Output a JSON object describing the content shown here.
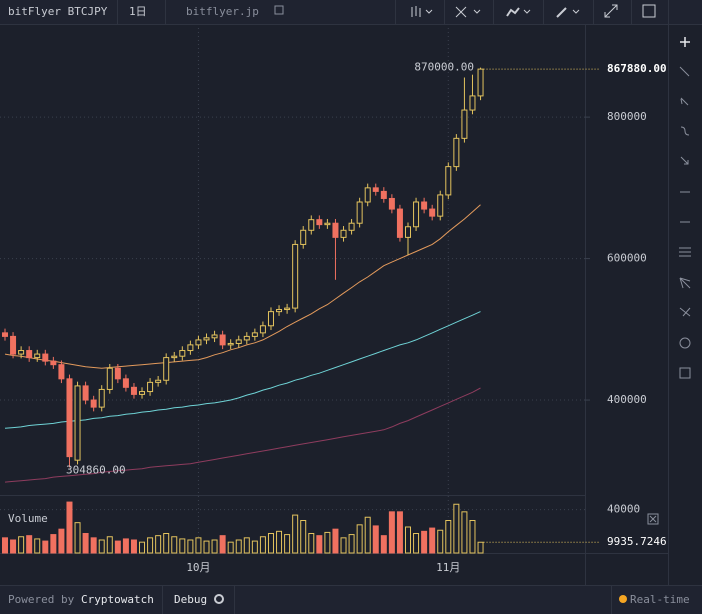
{
  "header": {
    "pair": "bitFlyer BTCJPY",
    "interval": "1日",
    "exchange": "bitflyer.jp"
  },
  "chart_data": {
    "type": "candlestick",
    "categories": [
      null,
      null,
      null,
      null,
      null,
      null,
      null,
      null,
      null,
      null,
      null,
      null,
      null,
      null,
      null,
      null,
      null,
      null,
      null,
      null,
      null,
      null,
      null,
      null,
      "10月",
      null,
      null,
      null,
      null,
      null,
      null,
      null,
      null,
      null,
      null,
      null,
      null,
      null,
      null,
      null,
      null,
      null,
      null,
      null,
      null,
      null,
      null,
      null,
      null,
      null,
      null,
      null,
      null,
      null,
      null,
      "11月",
      null,
      null,
      null,
      null
    ],
    "open": [
      495000,
      490000,
      465000,
      470000,
      460000,
      465000,
      455000,
      450000,
      430000,
      315000,
      420000,
      400000,
      390000,
      415000,
      445000,
      430000,
      418000,
      408000,
      412000,
      425000,
      428000,
      460000,
      462000,
      470000,
      478000,
      485000,
      488000,
      492000,
      478000,
      480000,
      485000,
      490000,
      495000,
      505000,
      525000,
      528000,
      530000,
      620000,
      640000,
      655000,
      648000,
      650000,
      630000,
      640000,
      650000,
      680000,
      700000,
      695000,
      685000,
      670000,
      630000,
      645000,
      680000,
      670000,
      660000,
      690000,
      730000,
      770000,
      810000,
      830000
    ],
    "high": [
      501000,
      496000,
      476000,
      476000,
      471000,
      471000,
      461000,
      456000,
      436000,
      426000,
      426000,
      406000,
      421000,
      451000,
      451000,
      436000,
      424000,
      418000,
      431000,
      434000,
      466000,
      468000,
      476000,
      484000,
      491000,
      494000,
      498000,
      498000,
      486000,
      491000,
      496000,
      501000,
      511000,
      531000,
      534000,
      536000,
      626000,
      646000,
      661000,
      661000,
      656000,
      656000,
      646000,
      656000,
      686000,
      706000,
      706000,
      701000,
      691000,
      676000,
      651000,
      686000,
      686000,
      676000,
      696000,
      736000,
      776000,
      856000,
      860000,
      870000
    ],
    "low": [
      484000,
      459000,
      459000,
      454000,
      454000,
      449000,
      444000,
      424000,
      304860,
      309000,
      394000,
      384000,
      384000,
      409000,
      424000,
      412000,
      402000,
      402000,
      406000,
      419000,
      422000,
      454000,
      456000,
      464000,
      472000,
      479000,
      482000,
      472000,
      472000,
      474000,
      479000,
      484000,
      489000,
      499000,
      519000,
      522000,
      524000,
      614000,
      634000,
      642000,
      642000,
      570000,
      624000,
      634000,
      644000,
      674000,
      689000,
      679000,
      664000,
      624000,
      605000,
      639000,
      664000,
      654000,
      654000,
      684000,
      724000,
      764000,
      804000,
      824000
    ],
    "close": [
      490000,
      465000,
      470000,
      460000,
      465000,
      455000,
      450000,
      430000,
      320000,
      420000,
      400000,
      390000,
      415000,
      445000,
      430000,
      418000,
      408000,
      412000,
      425000,
      428000,
      460000,
      462000,
      470000,
      478000,
      485000,
      488000,
      492000,
      478000,
      480000,
      485000,
      490000,
      495000,
      505000,
      525000,
      528000,
      530000,
      620000,
      640000,
      655000,
      648000,
      650000,
      630000,
      640000,
      650000,
      680000,
      700000,
      695000,
      685000,
      670000,
      630000,
      645000,
      680000,
      670000,
      660000,
      690000,
      730000,
      770000,
      810000,
      830000,
      867880
    ],
    "colors": {
      "up": "#e3c35e",
      "down": "#f07160"
    },
    "ylim": [
      270000,
      926000
    ],
    "yticks": [
      400000,
      600000,
      800000
    ],
    "grid": true,
    "high_label": {
      "value": 870000,
      "label": "870000.00"
    },
    "low_label": {
      "value": 304860,
      "label": "304860.00"
    },
    "last_price": {
      "value": 867880,
      "label": "867880.00"
    },
    "moving_averages": [
      {
        "color": "#e39a5c",
        "values": [
          465000,
          463000,
          462000,
          460000,
          458000,
          456000,
          455000,
          453000,
          451000,
          449000,
          447000,
          446000,
          445000,
          446000,
          447000,
          448000,
          449000,
          450000,
          451000,
          452000,
          453000,
          454000,
          455000,
          456000,
          457000,
          460000,
          464000,
          467000,
          471000,
          474000,
          478000,
          481000,
          485000,
          491000,
          497000,
          504000,
          510000,
          516000,
          522000,
          529000,
          535000,
          543000,
          551000,
          559000,
          567000,
          574000,
          582000,
          590000,
          595000,
          600000,
          605000,
          610000,
          615000,
          620000,
          628000,
          638000,
          647000,
          656000,
          666000,
          676000
        ]
      },
      {
        "color": "#6fd3d6",
        "values": [
          360000,
          361000,
          362000,
          364000,
          365000,
          366000,
          367000,
          369000,
          370000,
          371000,
          372000,
          374000,
          375000,
          377000,
          378000,
          380000,
          381000,
          383000,
          384000,
          386000,
          387000,
          389000,
          390000,
          392000,
          393000,
          395000,
          396000,
          398000,
          400000,
          403000,
          407000,
          410000,
          414000,
          417000,
          421000,
          424000,
          428000,
          431000,
          435000,
          438000,
          442000,
          446000,
          450000,
          454000,
          458000,
          462000,
          466000,
          470000,
          474000,
          478000,
          481000,
          485000,
          490000,
          495000,
          500000,
          505000,
          510000,
          515000,
          520000,
          525000
        ]
      },
      {
        "color": "#8e3c5e",
        "values": [
          284000,
          285000,
          286000,
          287000,
          288000,
          289000,
          291000,
          292000,
          293000,
          294000,
          295000,
          296000,
          298000,
          299000,
          300000,
          301000,
          302000,
          303000,
          305000,
          306000,
          307000,
          308000,
          309000,
          310000,
          312000,
          314000,
          316000,
          318000,
          320000,
          322000,
          324000,
          326000,
          328000,
          330000,
          332000,
          334000,
          336000,
          338000,
          340000,
          342000,
          344000,
          346000,
          348000,
          350000,
          352000,
          354000,
          356000,
          358000,
          362000,
          367000,
          371000,
          376000,
          381000,
          386000,
          391000,
          396000,
          401000,
          406000,
          411000,
          417000
        ]
      }
    ],
    "volume": {
      "title": "Volume",
      "values": [
        14000,
        12000,
        15000,
        16000,
        13000,
        11000,
        17000,
        22000,
        47000,
        28000,
        18000,
        14000,
        12000,
        15000,
        11000,
        13000,
        12000,
        10000,
        14000,
        16000,
        18000,
        15000,
        13000,
        12000,
        14000,
        11000,
        12000,
        16000,
        10000,
        12000,
        14000,
        11000,
        15000,
        18000,
        20000,
        17000,
        35000,
        30000,
        18000,
        16000,
        19000,
        22000,
        14000,
        17000,
        26000,
        33000,
        25000,
        16000,
        38000,
        38000,
        24000,
        18000,
        20000,
        23000,
        21000,
        30000,
        45000,
        38000,
        30000,
        9935.7246
      ],
      "ylim": [
        0,
        48000
      ],
      "yticks": [
        40000
      ]
    }
  },
  "footer": {
    "powered_by": "Powered by",
    "brand": "Cryptowatch",
    "debug": "Debug",
    "mode": "Real-time"
  }
}
